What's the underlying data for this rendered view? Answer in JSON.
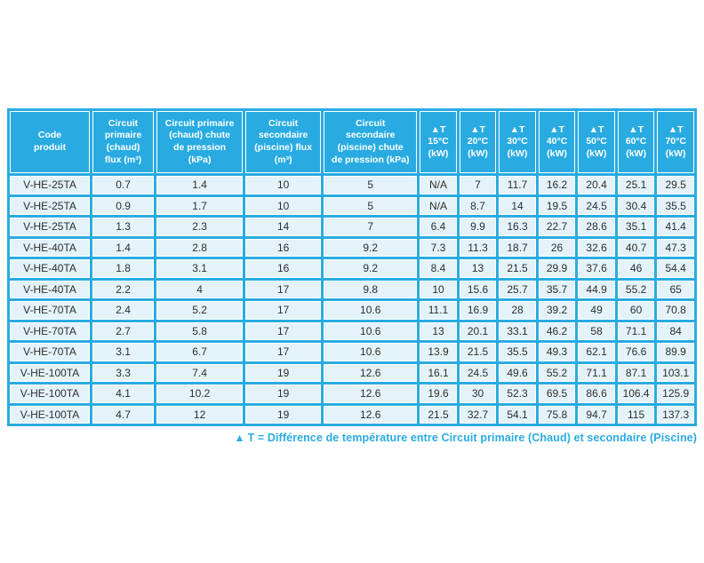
{
  "colors": {
    "accent_cyan": "#29ABE2",
    "cell_background": "#E4F3FA",
    "cell_text": "#2d2d2d",
    "header_text": "#ffffff",
    "footnote_text": "#29ABE2",
    "page_background": "#ffffff"
  },
  "table": {
    "columns": [
      {
        "id": "code-produit",
        "label": "Code\nproduit"
      },
      {
        "id": "circuit-primaire-flux",
        "label": "Circuit\nprimaire\n(chaud)\nflux (m³)"
      },
      {
        "id": "circuit-primaire-chute",
        "label": "Circuit primaire\n(chaud) chute\nde pression\n(kPa)"
      },
      {
        "id": "circuit-secondaire-flux",
        "label": "Circuit\nsecondaire\n(piscine) flux\n(m³)"
      },
      {
        "id": "circuit-secondaire-chute",
        "label": "Circuit\nsecondaire\n(piscine) chute\nde pression (kPa)"
      },
      {
        "id": "dt-15",
        "label": "▲T\n15°C\n(kW)"
      },
      {
        "id": "dt-20",
        "label": "▲T\n20°C\n(kW)"
      },
      {
        "id": "dt-30",
        "label": "▲T\n30°C\n(kW)"
      },
      {
        "id": "dt-40",
        "label": "▲T\n40°C\n(kW)"
      },
      {
        "id": "dt-50",
        "label": "▲T\n50°C\n(kW)"
      },
      {
        "id": "dt-60",
        "label": "▲T\n60°C\n(kW)"
      },
      {
        "id": "dt-70",
        "label": "▲T\n70°C\n(kW)"
      }
    ],
    "rows": [
      [
        "V-HE-25TA",
        "0.7",
        "1.4",
        "10",
        "5",
        "N/A",
        "7",
        "11.7",
        "16.2",
        "20.4",
        "25.1",
        "29.5"
      ],
      [
        "V-HE-25TA",
        "0.9",
        "1.7",
        "10",
        "5",
        "N/A",
        "8.7",
        "14",
        "19.5",
        "24.5",
        "30.4",
        "35.5"
      ],
      [
        "V-HE-25TA",
        "1.3",
        "2.3",
        "14",
        "7",
        "6.4",
        "9.9",
        "16.3",
        "22.7",
        "28.6",
        "35.1",
        "41.4"
      ],
      [
        "V-HE-40TA",
        "1.4",
        "2.8",
        "16",
        "9.2",
        "7.3",
        "11.3",
        "18.7",
        "26",
        "32.6",
        "40.7",
        "47.3"
      ],
      [
        "V-HE-40TA",
        "1.8",
        "3.1",
        "16",
        "9.2",
        "8.4",
        "13",
        "21.5",
        "29.9",
        "37.6",
        "46",
        "54.4"
      ],
      [
        "V-HE-40TA",
        "2.2",
        "4",
        "17",
        "9.8",
        "10",
        "15.6",
        "25.7",
        "35.7",
        "44.9",
        "55.2",
        "65"
      ],
      [
        "V-HE-70TA",
        "2.4",
        "5.2",
        "17",
        "10.6",
        "11.1",
        "16.9",
        "28",
        "39.2",
        "49",
        "60",
        "70.8"
      ],
      [
        "V-HE-70TA",
        "2.7",
        "5.8",
        "17",
        "10.6",
        "13",
        "20.1",
        "33.1",
        "46.2",
        "58",
        "71.1",
        "84"
      ],
      [
        "V-HE-70TA",
        "3.1",
        "6.7",
        "17",
        "10.6",
        "13.9",
        "21.5",
        "35.5",
        "49.3",
        "62.1",
        "76.6",
        "89.9"
      ],
      [
        "V-HE-100TA",
        "3.3",
        "7.4",
        "19",
        "12.6",
        "16.1",
        "24.5",
        "49.6",
        "55.2",
        "71.1",
        "87.1",
        "103.1"
      ],
      [
        "V-HE-100TA",
        "4.1",
        "10.2",
        "19",
        "12.6",
        "19.6",
        "30",
        "52.3",
        "69.5",
        "86.6",
        "106.4",
        "125.9"
      ],
      [
        "V-HE-100TA",
        "4.7",
        "12",
        "19",
        "12.6",
        "21.5",
        "32.7",
        "54.1",
        "75.8",
        "94.7",
        "115",
        "137.3"
      ]
    ]
  },
  "footnote": {
    "marker": "▲",
    "text": "T = Différence de température entre Circuit primaire (Chaud) et secondaire (Piscine)"
  }
}
